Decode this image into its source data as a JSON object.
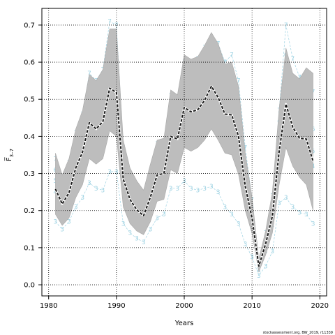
{
  "chart_data": {
    "type": "line",
    "title": "",
    "xlabel": "Years",
    "ylabel": "F̅",
    "ylabel_sub": "3–7",
    "footer": "stockassessment.org, BW_2019, r11339",
    "xlim": [
      1979,
      2021
    ],
    "ylim": [
      -0.03,
      0.745
    ],
    "x_ticks": [
      1980,
      1990,
      2000,
      2010,
      2020
    ],
    "y_ticks": [
      0.0,
      0.1,
      0.2,
      0.3,
      0.4,
      0.5,
      0.6,
      0.7
    ],
    "grid": true,
    "colors": {
      "band": "#bdbdbd",
      "line": "#1a1a1a",
      "digits": "#9fd3e3"
    },
    "x": [
      1981,
      1982,
      1983,
      1984,
      1985,
      1986,
      1987,
      1988,
      1989,
      1990,
      1991,
      1992,
      1993,
      1994,
      1995,
      1996,
      1997,
      1998,
      1999,
      2000,
      2001,
      2002,
      2003,
      2004,
      2005,
      2006,
      2007,
      2008,
      2009,
      2010,
      2011,
      2012,
      2013,
      2014,
      2015,
      2016,
      2017,
      2018,
      2019
    ],
    "series": [
      {
        "role": "estimate",
        "values": [
          0.258,
          0.218,
          0.248,
          0.315,
          0.358,
          0.437,
          0.42,
          0.44,
          0.53,
          0.518,
          0.285,
          0.23,
          0.202,
          0.186,
          0.236,
          0.296,
          0.3,
          0.4,
          0.393,
          0.478,
          0.466,
          0.472,
          0.497,
          0.535,
          0.505,
          0.46,
          0.458,
          0.4,
          0.265,
          0.18,
          0.05,
          0.11,
          0.185,
          0.36,
          0.487,
          0.425,
          0.395,
          0.393,
          0.333
        ]
      },
      {
        "role": "upper",
        "values": [
          0.355,
          0.296,
          0.34,
          0.42,
          0.47,
          0.567,
          0.55,
          0.58,
          0.69,
          0.69,
          0.39,
          0.315,
          0.28,
          0.255,
          0.325,
          0.39,
          0.395,
          0.525,
          0.512,
          0.62,
          0.608,
          0.615,
          0.645,
          0.68,
          0.65,
          0.595,
          0.6,
          0.535,
          0.355,
          0.235,
          0.07,
          0.145,
          0.25,
          0.475,
          0.638,
          0.57,
          0.555,
          0.585,
          0.57
        ]
      },
      {
        "role": "lower",
        "values": [
          0.19,
          0.16,
          0.18,
          0.235,
          0.27,
          0.34,
          0.325,
          0.34,
          0.415,
          0.4,
          0.21,
          0.165,
          0.145,
          0.135,
          0.17,
          0.225,
          0.23,
          0.31,
          0.3,
          0.37,
          0.36,
          0.37,
          0.39,
          0.42,
          0.39,
          0.355,
          0.35,
          0.298,
          0.2,
          0.138,
          0.035,
          0.08,
          0.14,
          0.27,
          0.37,
          0.32,
          0.29,
          0.27,
          0.2
        ]
      }
    ],
    "age_digit_lines": [
      {
        "label": "3",
        "values": [
          0.17,
          0.15,
          0.17,
          0.21,
          0.235,
          0.275,
          0.26,
          0.255,
          0.305,
          0.305,
          0.165,
          0.14,
          0.125,
          0.115,
          0.15,
          0.18,
          0.19,
          0.26,
          0.26,
          0.28,
          0.26,
          0.255,
          0.26,
          0.265,
          0.25,
          0.21,
          0.19,
          0.165,
          0.11,
          0.075,
          0.025,
          0.05,
          0.09,
          0.22,
          0.235,
          0.21,
          0.195,
          0.19,
          0.165
        ]
      },
      {
        "label": "4",
        "values": [
          0.25,
          0.21,
          0.24,
          0.3,
          0.34,
          0.42,
          0.4,
          0.42,
          0.5,
          0.5,
          0.28,
          0.22,
          0.19,
          0.17,
          0.22,
          0.28,
          0.29,
          0.38,
          0.38,
          0.44,
          0.42,
          0.43,
          0.45,
          0.47,
          0.44,
          0.4,
          0.4,
          0.35,
          0.24,
          0.16,
          0.04,
          0.09,
          0.16,
          0.32,
          0.42,
          0.38,
          0.36,
          0.36,
          0.32
        ]
      },
      {
        "label": "5",
        "values": [
          0.28,
          0.24,
          0.27,
          0.34,
          0.38,
          0.47,
          0.45,
          0.47,
          0.57,
          0.56,
          0.31,
          0.25,
          0.22,
          0.2,
          0.25,
          0.32,
          0.32,
          0.43,
          0.42,
          0.52,
          0.5,
          0.51,
          0.54,
          0.58,
          0.55,
          0.5,
          0.5,
          0.44,
          0.29,
          0.19,
          0.05,
          0.12,
          0.2,
          0.39,
          0.53,
          0.47,
          0.43,
          0.43,
          0.36
        ]
      },
      {
        "label": "6",
        "values": [
          0.31,
          0.26,
          0.3,
          0.37,
          0.42,
          0.52,
          0.5,
          0.52,
          0.63,
          0.62,
          0.34,
          0.27,
          0.24,
          0.22,
          0.28,
          0.35,
          0.35,
          0.47,
          0.46,
          0.57,
          0.56,
          0.57,
          0.61,
          0.66,
          0.62,
          0.56,
          0.56,
          0.5,
          0.33,
          0.21,
          0.055,
          0.13,
          0.22,
          0.44,
          0.62,
          0.53,
          0.49,
          0.49,
          0.42
        ]
      },
      {
        "label": "7",
        "values": [
          0.34,
          0.28,
          0.33,
          0.41,
          0.46,
          0.57,
          0.55,
          0.58,
          0.71,
          0.7,
          0.37,
          0.3,
          0.26,
          0.24,
          0.3,
          0.38,
          0.38,
          0.51,
          0.5,
          0.6,
          0.59,
          0.61,
          0.64,
          0.66,
          0.65,
          0.6,
          0.62,
          0.55,
          0.37,
          0.23,
          0.06,
          0.14,
          0.24,
          0.47,
          0.7,
          0.61,
          0.56,
          0.57,
          0.52
        ]
      }
    ]
  }
}
